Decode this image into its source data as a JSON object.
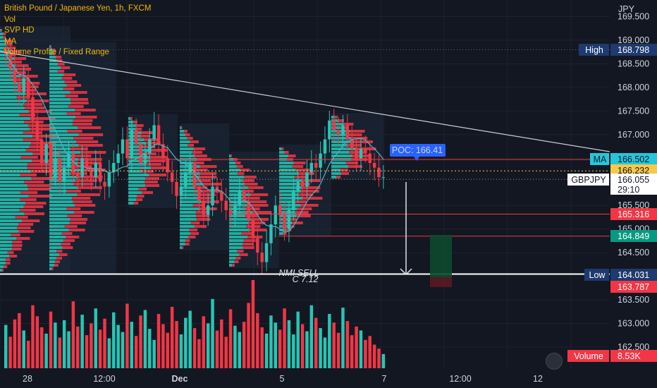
{
  "legend": {
    "symbol": "British Pound / Japanese Yen, 1h, FXCM",
    "indicators": [
      "Vol",
      "SVP HD",
      "MA",
      "Volume Profile / Fixed Range"
    ]
  },
  "currency": "JPY",
  "colors": {
    "background": "#131722",
    "up": "#26c6b4",
    "down": "#f23645",
    "ma_line": "#4fb3c8",
    "grid": "#1e2230",
    "axis_text": "#d1d4dc",
    "trendline": "#c8ccd4",
    "level_red": "#f23645",
    "poc_blue": "#2962ff",
    "ma_tag": "#26c6da",
    "yellow": "#f7c948",
    "green_tag": "#089981",
    "navy_tag": "#1e3a6e"
  },
  "price_axis": {
    "ticks": [
      "169.500",
      "169.000",
      "168.500",
      "168.000",
      "167.500",
      "167.000",
      "166.500",
      "165.500",
      "165.000",
      "164.500",
      "163.500",
      "163.000",
      "162.500"
    ],
    "tags": [
      {
        "label": "High",
        "value": "168.798",
        "kind": "navy"
      },
      {
        "label": "MA",
        "value": "166.502",
        "kind": "cyan"
      },
      {
        "label": "",
        "value": "166.232",
        "kind": "yellow"
      },
      {
        "label": "GBPJPY",
        "value": "166.055",
        "sub": "29:10",
        "kind": "white"
      },
      {
        "label": "",
        "value": "165.316",
        "kind": "red"
      },
      {
        "label": "",
        "value": "164.849",
        "kind": "green"
      },
      {
        "label": "Low",
        "value": "164.031",
        "kind": "navy"
      },
      {
        "label": "",
        "value": "163.787",
        "kind": "red"
      },
      {
        "label": "Volume",
        "value": "8.53K",
        "kind": "red"
      }
    ]
  },
  "time_axis": {
    "labels": [
      "28",
      "12:00",
      "Dec",
      "5",
      "7",
      "12:00",
      "12"
    ]
  },
  "annotations": {
    "poc": "POC: 166.41",
    "nmi_line1": "NMI SELL",
    "nmi_line2": "C 7.12"
  },
  "chart_data": {
    "type": "candlestick",
    "symbol": "GBPJPY",
    "interval": "1h",
    "y_ticks": [
      169.5,
      169.0,
      168.5,
      168.0,
      167.5,
      167.0,
      166.5,
      165.5,
      165.0,
      164.5,
      163.5,
      163.0,
      162.5
    ],
    "x_labels": [
      "28",
      "12:00",
      "Dec",
      "5",
      "7",
      "12:00",
      "12"
    ],
    "levels": {
      "high": 168.798,
      "ma": 166.502,
      "yellow_line": 166.232,
      "last_price": 166.055,
      "red_level": 165.316,
      "green_level": 164.849,
      "low": 164.031,
      "lower_red": 163.787
    },
    "poc": 166.41,
    "volume_last": "8.53K",
    "candles_approx_close": [
      168.7,
      168.4,
      168.1,
      167.9,
      168.2,
      167.8,
      167.3,
      166.9,
      166.4,
      166.8,
      166.1,
      166.5,
      166.0,
      166.3,
      166.6,
      166.2,
      166.1,
      166.5,
      166.3,
      166.1,
      166.4,
      166.0,
      165.9,
      166.2,
      166.4,
      166.6,
      166.9,
      166.5,
      167.1,
      166.8,
      166.4,
      166.6,
      166.9,
      167.2,
      166.8,
      166.5,
      166.2,
      166.0,
      165.7,
      165.9,
      166.2,
      166.4,
      165.9,
      165.6,
      165.3,
      165.5,
      165.9,
      165.8,
      165.6,
      165.4,
      165.3,
      165.5,
      165.8,
      165.6,
      165.2,
      164.8,
      164.5,
      164.3,
      164.7,
      165.1,
      165.5,
      165.3,
      165.0,
      165.4,
      165.8,
      166.0,
      165.9,
      166.2,
      166.4,
      166.3,
      166.6,
      166.9,
      167.3,
      167.1,
      167.0,
      167.2,
      166.9,
      166.7,
      166.5,
      166.7,
      166.6,
      166.4,
      166.3,
      166.1,
      166.1
    ],
    "volume_approx": [
      55,
      40,
      62,
      70,
      48,
      35,
      80,
      66,
      52,
      44,
      72,
      58,
      39,
      61,
      47,
      85,
      53,
      68,
      42,
      57,
      76,
      49,
      63,
      38,
      71,
      55,
      46,
      82,
      59,
      41,
      67,
      74,
      50,
      36,
      69,
      56,
      45,
      78,
      60,
      43,
      64,
      73,
      51,
      37,
      66,
      57,
      88,
      48,
      62,
      40,
      75,
      54,
      46,
      59,
      83,
      112,
      70,
      52,
      44,
      67,
      58,
      49,
      76,
      61,
      43,
      72,
      56,
      47,
      80,
      64,
      51,
      39,
      69,
      58,
      45,
      77,
      60,
      42,
      53,
      48,
      36,
      41,
      30,
      25,
      18
    ]
  }
}
